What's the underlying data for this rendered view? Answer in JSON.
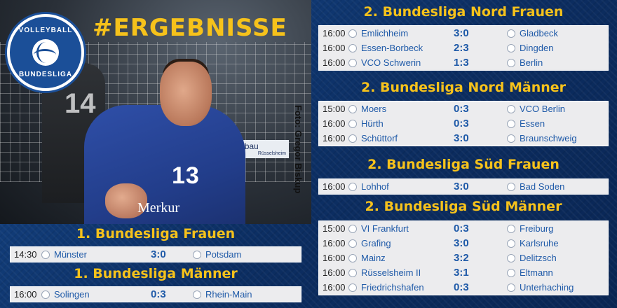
{
  "header": {
    "hashtag": "#ERGEBNISSE",
    "logo_top": "VOLLEYBALL",
    "logo_bottom": "BUNDESLIGA",
    "photo_credit": "Foto: Gregor Biskup",
    "jersey_number": "13",
    "jersey_sponsor": "Merkur",
    "banner_text": "gewobau",
    "banner_sub": "Rüsselsheim",
    "bg_number": "14"
  },
  "colors": {
    "background": "#0f3570",
    "title_accent": "#f6c21b",
    "team_text": "#1f5aa8",
    "box_bg": "#ececee"
  },
  "leagues": [
    {
      "title": "1. Bundesliga Frauen",
      "games": [
        {
          "time": "14:30",
          "home": "Münster",
          "score": "3:0",
          "away": "Potsdam"
        }
      ]
    },
    {
      "title": "1. Bundesliga Männer",
      "games": [
        {
          "time": "16:00",
          "home": "Solingen",
          "score": "0:3",
          "away": "Rhein-Main"
        }
      ]
    },
    {
      "title": "2. Bundesliga Nord Frauen",
      "games": [
        {
          "time": "16:00",
          "home": "Emlichheim",
          "score": "3:0",
          "away": "Gladbeck"
        },
        {
          "time": "16:00",
          "home": "Essen-Borbeck",
          "score": "2:3",
          "away": "Dingden"
        },
        {
          "time": "16:00",
          "home": "VCO Schwerin",
          "score": "1:3",
          "away": "Berlin"
        }
      ]
    },
    {
      "title": "2. Bundesliga Nord Männer",
      "games": [
        {
          "time": "15:00",
          "home": "Moers",
          "score": "0:3",
          "away": "VCO Berlin"
        },
        {
          "time": "16:00",
          "home": "Hürth",
          "score": "0:3",
          "away": "Essen"
        },
        {
          "time": "16:00",
          "home": "Schüttorf",
          "score": "3:0",
          "away": "Braunschweig"
        }
      ]
    },
    {
      "title": "2. Bundesliga Süd Frauen",
      "games": [
        {
          "time": "16:00",
          "home": "Lohhof",
          "score": "3:0",
          "away": "Bad Soden"
        }
      ]
    },
    {
      "title": "2. Bundesliga Süd Männer",
      "games": [
        {
          "time": "15:00",
          "home": "VI Frankfurt",
          "score": "0:3",
          "away": "Freiburg"
        },
        {
          "time": "16:00",
          "home": "Grafing",
          "score": "3:0",
          "away": "Karlsruhe"
        },
        {
          "time": "16:00",
          "home": "Mainz",
          "score": "3:2",
          "away": "Delitzsch"
        },
        {
          "time": "16:00",
          "home": "Rüsselsheim II",
          "score": "3:1",
          "away": "Eltmann"
        },
        {
          "time": "16:00",
          "home": "Friedrichshafen",
          "score": "0:3",
          "away": "Unterhaching"
        }
      ]
    }
  ]
}
